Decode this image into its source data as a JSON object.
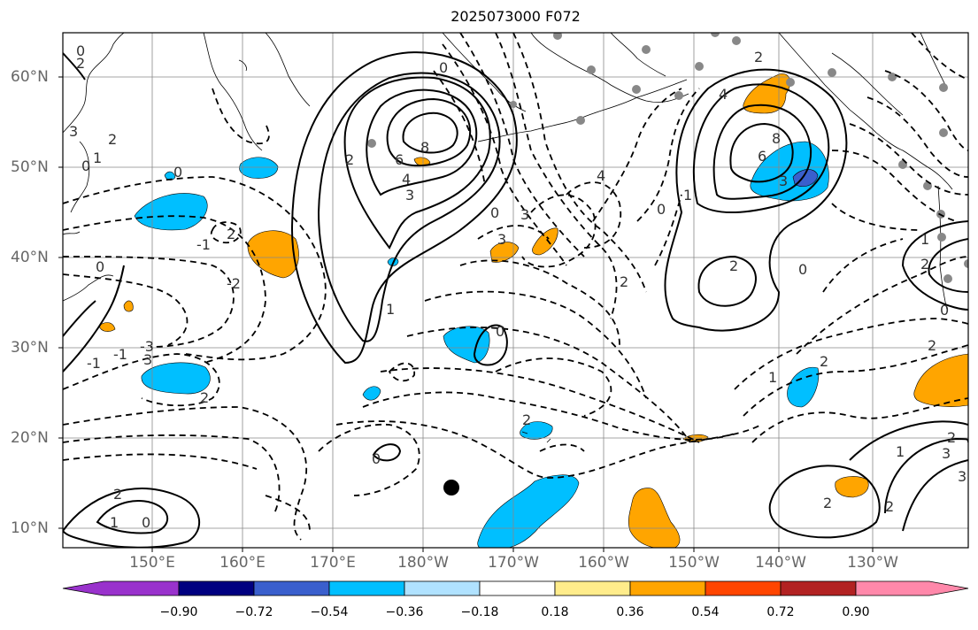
{
  "title": "2025073000 F072",
  "lat_labels": [
    "60°N",
    "50°N",
    "40°N",
    "30°N",
    "20°N",
    "10°N"
  ],
  "lon_labels": [
    "150°E",
    "160°E",
    "170°E",
    "180°W",
    "170°W",
    "160°W",
    "150°W",
    "140°W",
    "130°W"
  ],
  "colorbar": {
    "ticks": [
      "−0.90",
      "−0.72",
      "−0.54",
      "−0.36",
      "−0.18",
      "0.18",
      "0.36",
      "0.54",
      "0.72",
      "0.90"
    ],
    "colors": [
      "#9932cc",
      "#000080",
      "#3a5fcd",
      "#00bfff",
      "#b0e2ff",
      "#ffffff",
      "#ffec8b",
      "#ffa500",
      "#ff4500",
      "#b22222",
      "#ff88aa"
    ]
  },
  "contour_labels": [
    "0",
    "2",
    "3",
    "2",
    "0",
    "1",
    "0",
    "0",
    "-1",
    "-2",
    "6",
    "8",
    "4",
    "3",
    "2",
    "0",
    "3",
    "0",
    "4",
    "2",
    "4",
    "8",
    "6",
    "3",
    "2",
    "2",
    "0",
    "1",
    "0",
    "1",
    "3",
    "-1",
    "-1",
    "-3",
    "2",
    "2",
    "3",
    "0",
    "2",
    "2",
    "1",
    "2",
    "2",
    "1",
    "2",
    "0",
    "3",
    "1",
    "0",
    "2",
    "3",
    "2",
    "2",
    "1",
    "0"
  ]
}
